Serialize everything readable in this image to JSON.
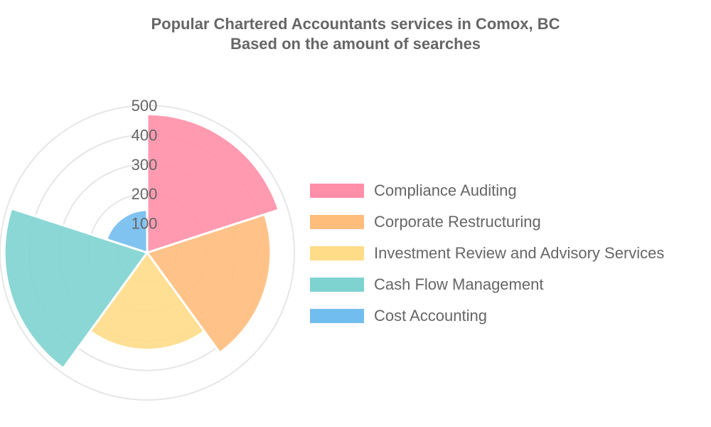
{
  "chart_data": {
    "type": "polarArea",
    "title": [
      "Popular Chartered Accountants services in Comox, BC",
      "Based on the amount of searches"
    ],
    "r_ticks": [
      100,
      200,
      300,
      400,
      500
    ],
    "r_max": 500,
    "grid": true,
    "legend_position": "right",
    "series": [
      {
        "name": "Compliance Auditing",
        "value": 470,
        "color": "#ff8fa9"
      },
      {
        "name": "Corporate Restructuring",
        "value": 420,
        "color": "#ffbd7c"
      },
      {
        "name": "Investment Review and Advisory Services",
        "value": 330,
        "color": "#ffdc88"
      },
      {
        "name": "Cash Flow Management",
        "value": 485,
        "color": "#7ed3d0"
      },
      {
        "name": "Cost Accounting",
        "value": 145,
        "color": "#72bdf0"
      }
    ]
  }
}
